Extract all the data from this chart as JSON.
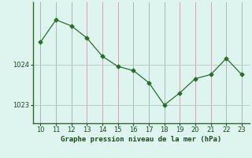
{
  "x": [
    10,
    11,
    12,
    13,
    14,
    15,
    16,
    17,
    18,
    19,
    20,
    21,
    22,
    23
  ],
  "y": [
    1024.55,
    1025.1,
    1024.95,
    1024.65,
    1024.2,
    1023.95,
    1023.85,
    1023.55,
    1023.0,
    1023.3,
    1023.65,
    1023.75,
    1024.15,
    1023.75
  ],
  "line_color": "#2a6e2a",
  "marker": "D",
  "marker_size": 2.5,
  "bg_color": "#ddf5ee",
  "grid_color_v": "#c8a8b8",
  "grid_color_h": "#b8ccc8",
  "xlabel": "Graphe pression niveau de la mer (hPa)",
  "xlabel_color": "#1a4a1a",
  "tick_color": "#1a4a1a",
  "yticks": [
    1023,
    1024
  ],
  "xlim": [
    9.5,
    23.5
  ],
  "ylim": [
    1022.55,
    1025.55
  ],
  "xticks": [
    10,
    11,
    12,
    13,
    14,
    15,
    16,
    17,
    18,
    19,
    20,
    21,
    22,
    23
  ],
  "spine_color": "#336633"
}
